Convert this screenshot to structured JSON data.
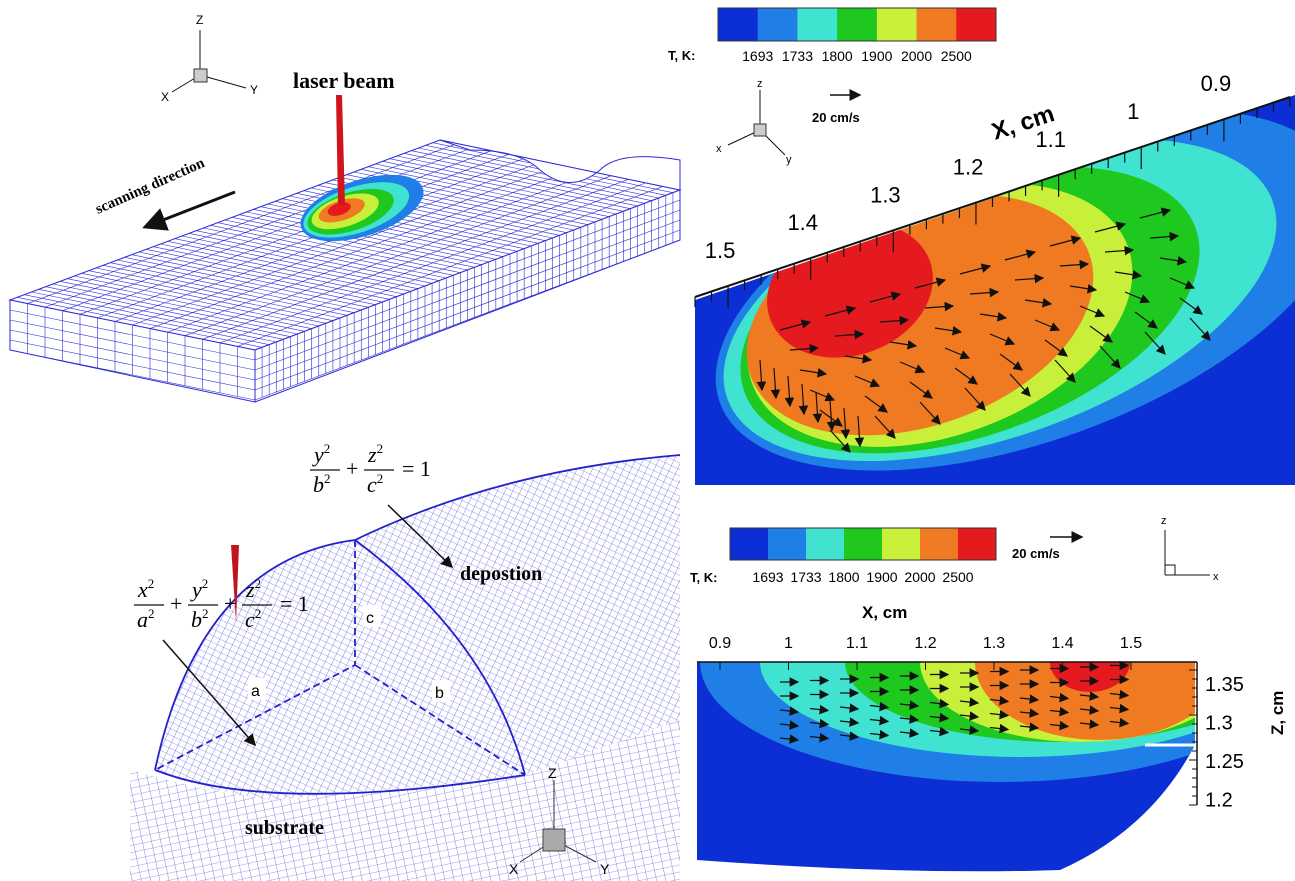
{
  "panel_a": {
    "axes": {
      "z": "Z",
      "x": "X",
      "y": "Y"
    },
    "beam_label": "laser beam",
    "direction_label": "scanning direction"
  },
  "panel_b": {
    "equation_ellipsoid": {
      "terms": [
        {
          "num": "x",
          "den": "a"
        },
        {
          "num": "y",
          "den": "b"
        },
        {
          "num": "z",
          "den": "c"
        }
      ],
      "exponent": "2",
      "plus": "+",
      "rhs": "= 1"
    },
    "equation_deposition": {
      "terms": [
        {
          "num": "y",
          "den": "b"
        },
        {
          "num": "z",
          "den": "c"
        }
      ],
      "exponent": "2",
      "plus": "+",
      "rhs": "= 1"
    },
    "semi_axes": [
      "a",
      "b",
      "c"
    ],
    "deposition_label": "depostion",
    "substrate_label": "substrate",
    "axes": {
      "z": "Z",
      "x": "X",
      "y": "Y"
    }
  },
  "panel_c": {
    "colorbar": {
      "label": "T, K:",
      "ticks": [
        "1693",
        "1733",
        "1800",
        "1900",
        "2000",
        "2500"
      ],
      "colors": [
        "#0b2fd4",
        "#1f7fe6",
        "#3fe3d0",
        "#1ec81e",
        "#c8ef3a",
        "#f07a22",
        "#e51a1e"
      ]
    },
    "velocity_label": "20 cm/s",
    "axes": {
      "z": "z",
      "x": "x",
      "y": "y"
    },
    "x_axis": {
      "label": "X, cm",
      "ticks": [
        "1.5",
        "1.4",
        "1.3",
        "1.2",
        "1.1",
        "1",
        "0.9"
      ]
    }
  },
  "panel_d": {
    "colorbar": {
      "label": "T, K:",
      "ticks": [
        "1693",
        "1733",
        "1800",
        "1900",
        "2000",
        "2500"
      ],
      "colors": [
        "#0b2fd4",
        "#1f7fe6",
        "#3fe3d0",
        "#1ec81e",
        "#c8ef3a",
        "#f07a22",
        "#e51a1e"
      ]
    },
    "velocity_label": "20 cm/s",
    "axes": {
      "z": "z",
      "x": "x"
    },
    "x_axis": {
      "label": "X, cm",
      "ticks": [
        "0.9",
        "1",
        "1.1",
        "1.2",
        "1.3",
        "1.4",
        "1.5"
      ]
    },
    "z_axis": {
      "label": "Z, cm",
      "ticks": [
        "1.35",
        "1.3",
        "1.25",
        "1.2"
      ]
    }
  }
}
